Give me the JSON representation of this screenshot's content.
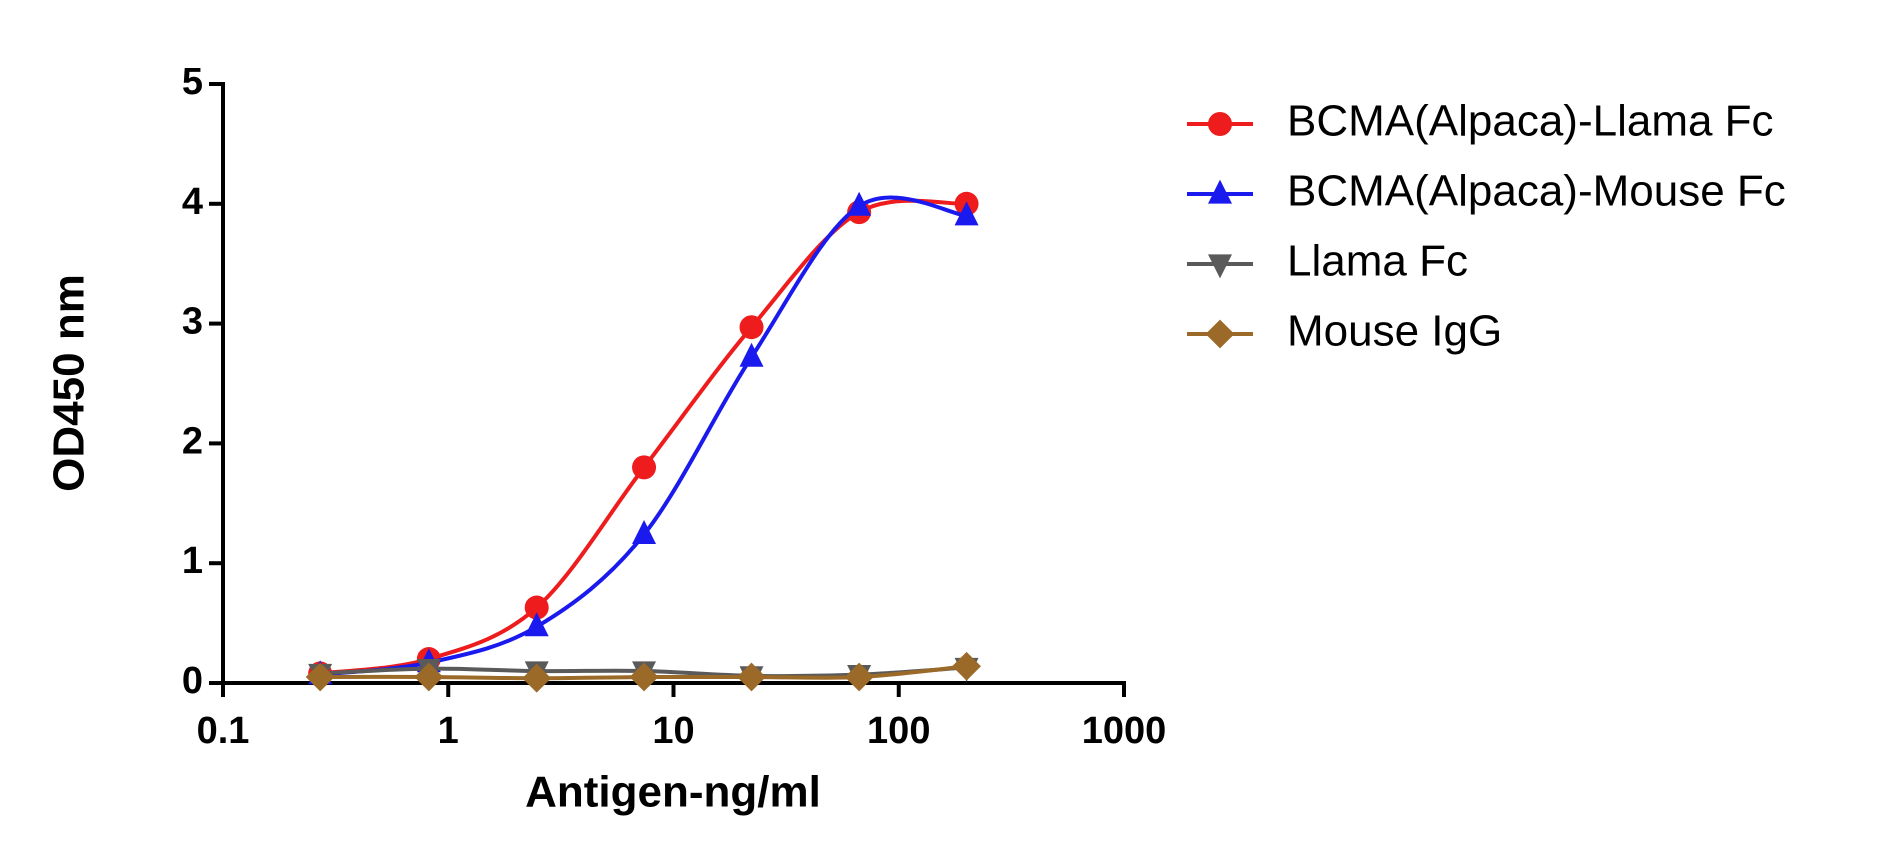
{
  "chart_data": {
    "type": "line",
    "xlabel": "Antigen-ng/ml",
    "ylabel": "OD450 nm",
    "x": [
      0.27,
      0.82,
      2.47,
      7.4,
      22.2,
      66.7,
      200
    ],
    "xscale": "log",
    "xlim": [
      0.1,
      1000
    ],
    "xticks": [
      0.1,
      1,
      10,
      100,
      1000
    ],
    "ylim": [
      0,
      5
    ],
    "yticks": [
      0,
      1,
      2,
      3,
      4,
      5
    ],
    "legend": "right",
    "series": [
      {
        "name": "BCMA(Alpaca)-Llama Fc",
        "color": "#ee1c1c",
        "marker": "circle",
        "values": [
          0.08,
          0.2,
          0.63,
          1.8,
          2.97,
          3.93,
          4.0
        ]
      },
      {
        "name": "BCMA(Alpaca)-Mouse Fc",
        "color": "#1a1aee",
        "marker": "triangle-up",
        "values": [
          0.07,
          0.17,
          0.47,
          1.24,
          2.72,
          3.98,
          3.9
        ]
      },
      {
        "name": "Llama Fc",
        "color": "#5a5a5a",
        "marker": "triangle-down",
        "values": [
          0.08,
          0.12,
          0.1,
          0.1,
          0.06,
          0.07,
          0.13
        ]
      },
      {
        "name": "Mouse IgG",
        "color": "#9c6a28",
        "marker": "diamond",
        "values": [
          0.05,
          0.05,
          0.04,
          0.05,
          0.05,
          0.05,
          0.14
        ]
      }
    ]
  }
}
